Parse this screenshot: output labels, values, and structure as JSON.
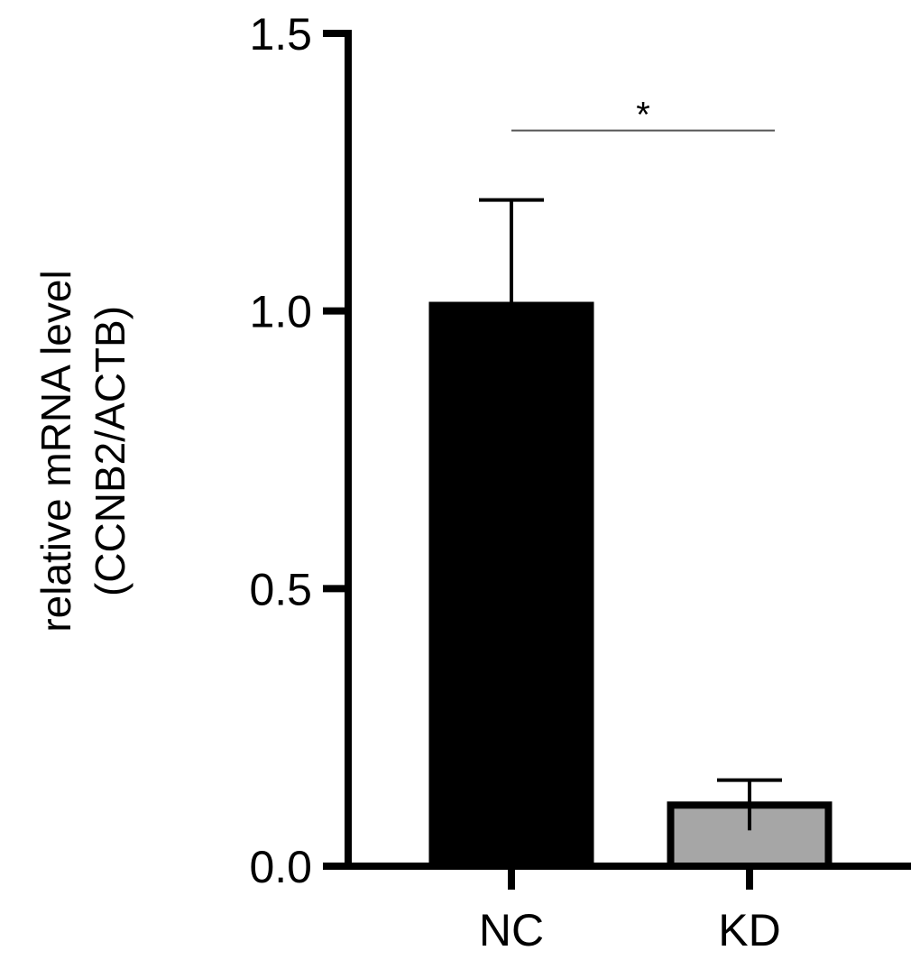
{
  "chart_data": {
    "type": "bar",
    "categories": [
      "NC",
      "KD"
    ],
    "values": [
      1.01,
      0.11
    ],
    "error_upper": [
      1.2,
      0.155
    ],
    "ylabel_line1": "relative mRNA level",
    "ylabel_line2": "(CCNB2/ACTB)",
    "ylim": [
      0,
      1.5
    ],
    "yticks": [
      0.0,
      0.5,
      1.0,
      1.5
    ],
    "ytick_labels": [
      "0.0",
      "0.5",
      "1.0",
      "1.5"
    ],
    "grid": false,
    "significance": {
      "from": "NC",
      "to": "KD",
      "y": 1.325,
      "label": "*"
    },
    "colors": {
      "NC": "#000000",
      "KD": "#a6a6a6",
      "outline": "#000000",
      "axis": "#000000",
      "sig_line": "#555555"
    }
  }
}
